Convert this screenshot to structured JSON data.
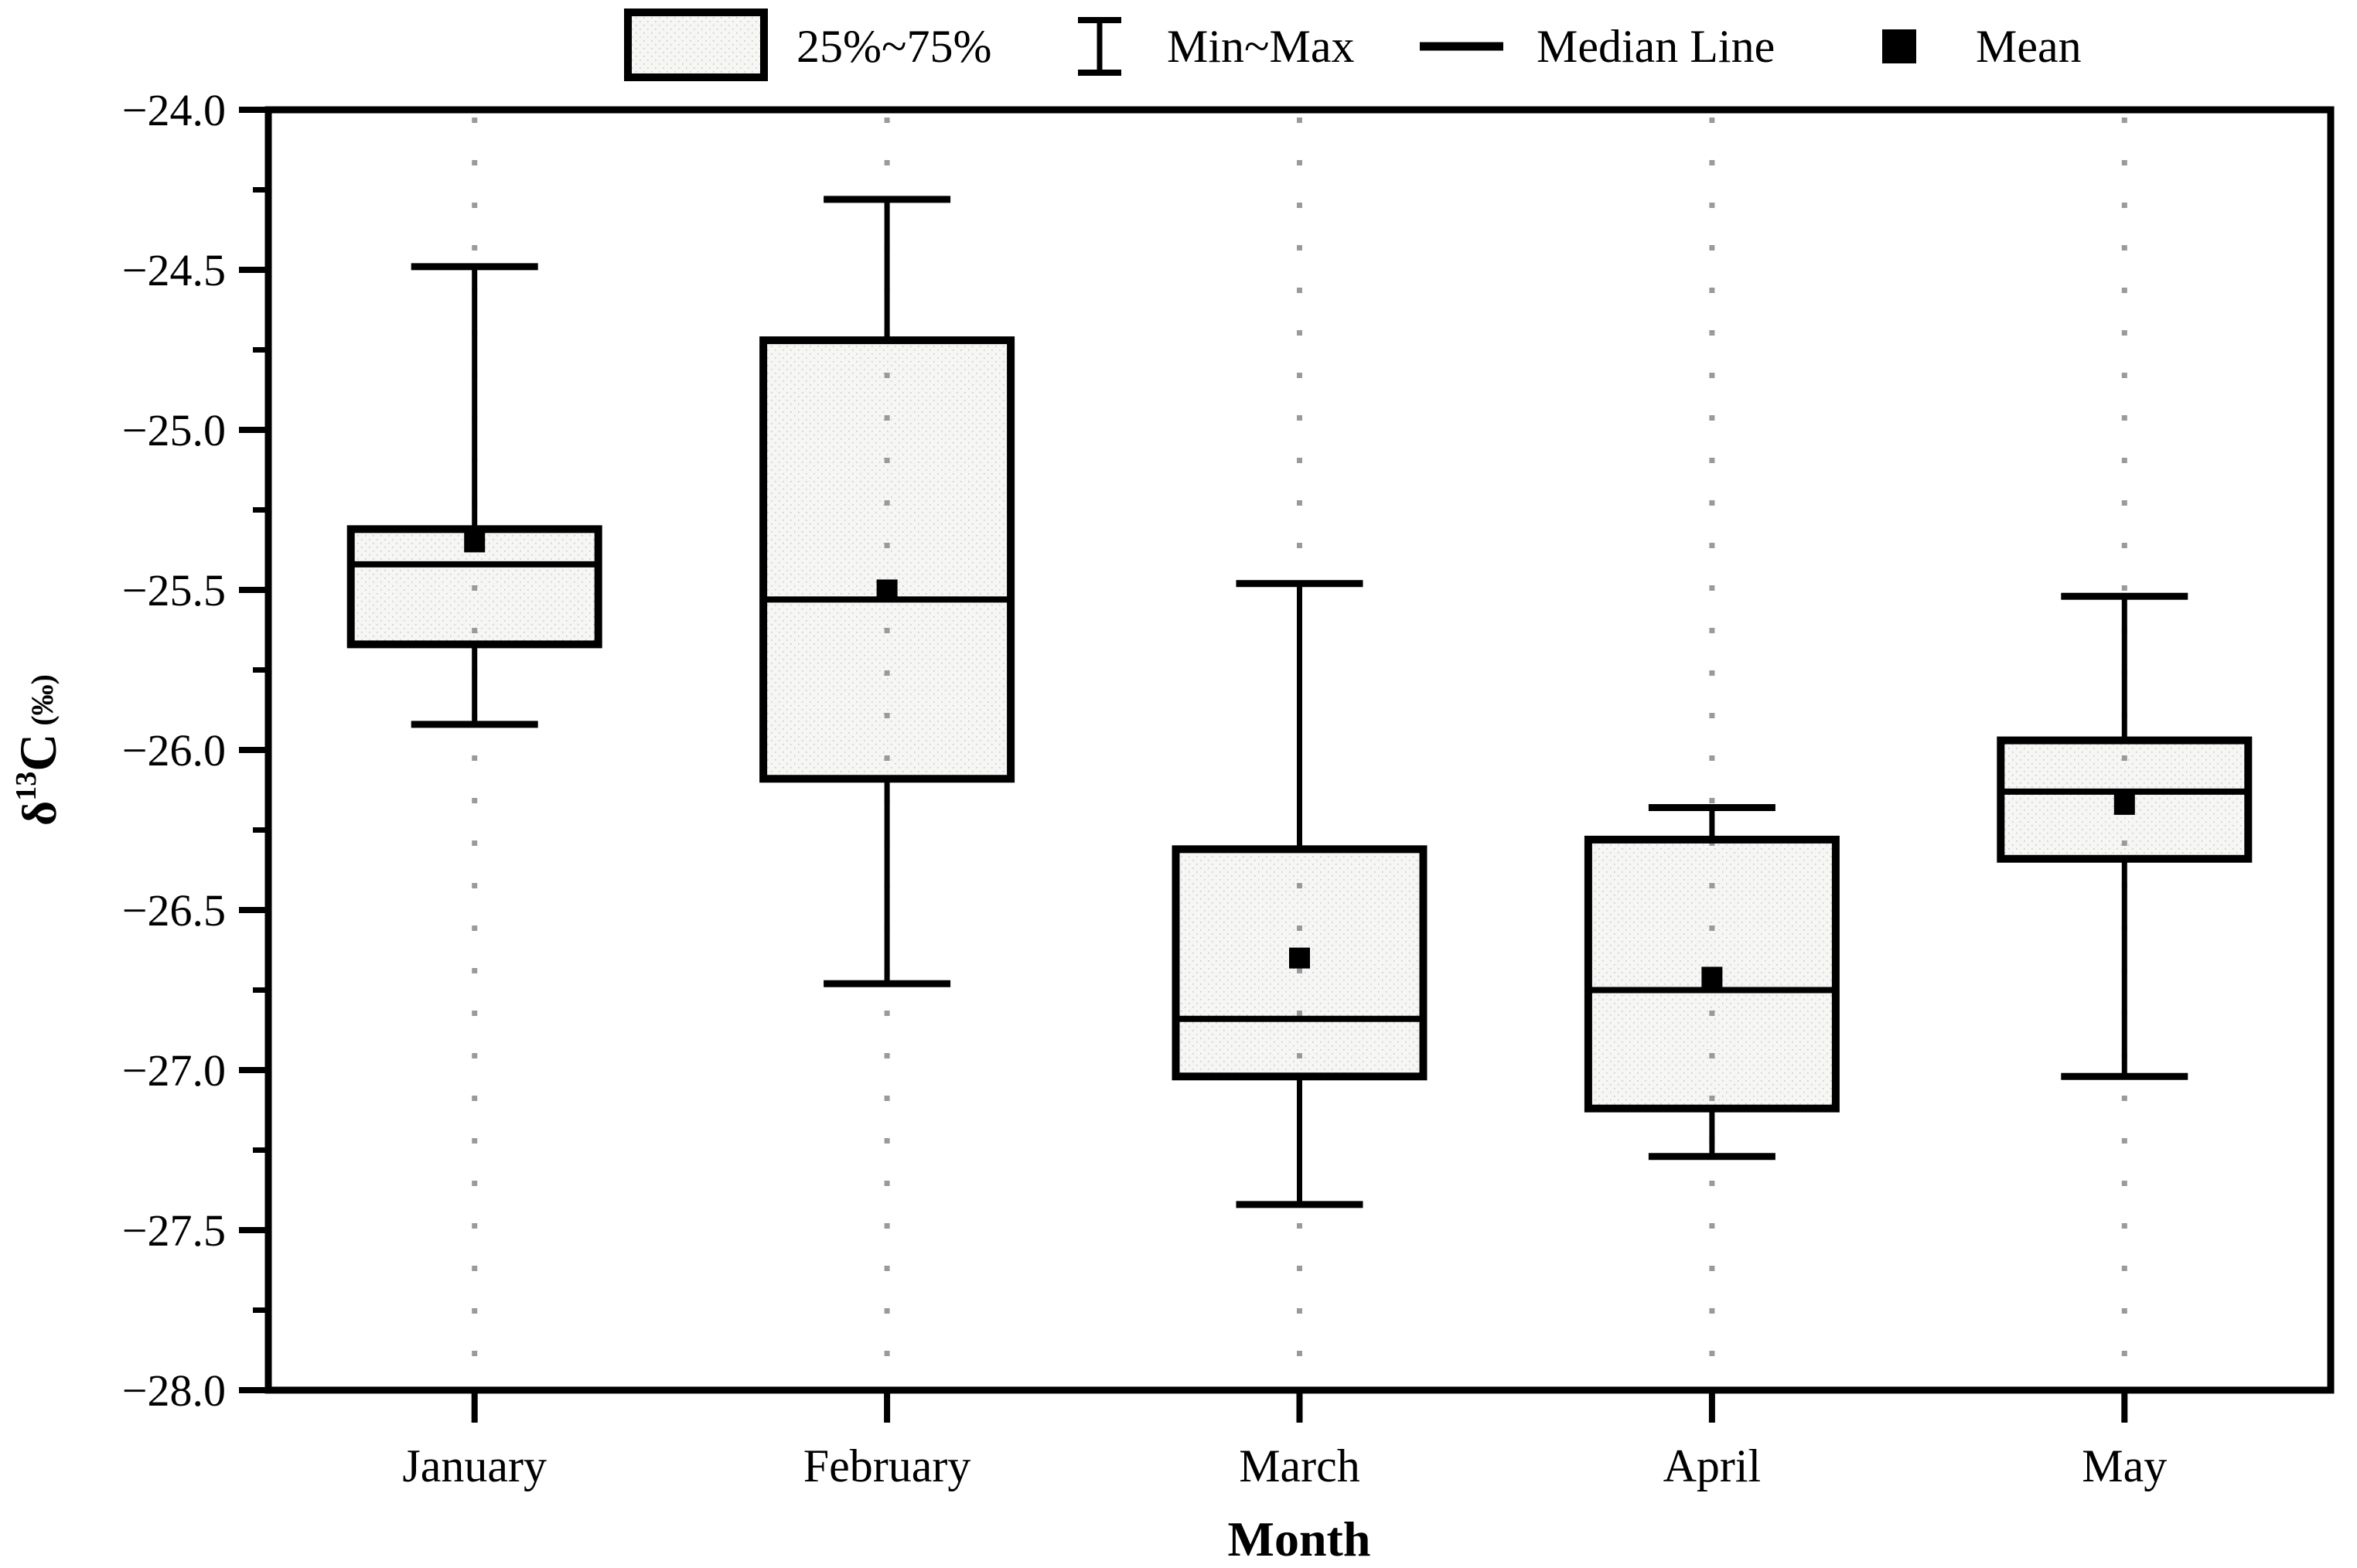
{
  "chart_data": {
    "type": "box",
    "xlabel": "Month",
    "ylabel": "δ¹³C (‰)",
    "ylabel_parts": {
      "delta": "δ",
      "sup": "13",
      "element": "C",
      "unit": "(‰)"
    },
    "categories": [
      "January",
      "February",
      "March",
      "April",
      "May"
    ],
    "ylim": [
      -28.0,
      -24.0
    ],
    "y_major_step": 0.5,
    "y_minor_step": 0.25,
    "y_tick_labels": [
      "−24.0",
      "−24.5",
      "−25.0",
      "−25.5",
      "−26.0",
      "−26.5",
      "−27.0",
      "−27.5",
      "−28.0"
    ],
    "grid": "vertical-dotted",
    "legend_position": "top",
    "legend": [
      {
        "symbol": "box",
        "label": "25%~75%"
      },
      {
        "symbol": "whisker",
        "label": "Min~Max"
      },
      {
        "symbol": "line",
        "label": "Median Line"
      },
      {
        "symbol": "square",
        "label": "Mean"
      }
    ],
    "series": [
      {
        "month": "January",
        "min": -25.92,
        "q1": -25.67,
        "median": -25.42,
        "mean": -25.35,
        "q3": -25.31,
        "max": -24.49
      },
      {
        "month": "February",
        "min": -26.73,
        "q1": -26.09,
        "median": -25.53,
        "mean": -25.5,
        "q3": -24.72,
        "max": -24.28
      },
      {
        "month": "March",
        "min": -27.42,
        "q1": -27.02,
        "median": -26.84,
        "mean": -26.65,
        "q3": -26.31,
        "max": -25.48
      },
      {
        "month": "April",
        "min": -27.27,
        "q1": -27.12,
        "median": -26.75,
        "mean": -26.71,
        "q3": -26.28,
        "max": -26.18
      },
      {
        "month": "May",
        "min": -27.02,
        "q1": -26.34,
        "median": -26.13,
        "mean": -26.17,
        "q3": -25.97,
        "max": -25.52
      }
    ],
    "colors": {
      "stroke": "#000000",
      "box_fill": "#f6f6f5",
      "box_dot": "#c9c9c6",
      "gridline": "#9a9a9a",
      "background": "#ffffff"
    }
  }
}
